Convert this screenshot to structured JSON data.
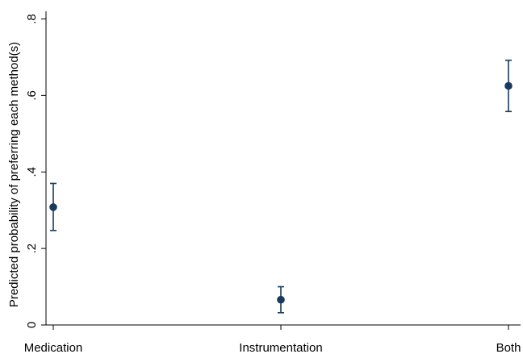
{
  "chart_data": {
    "type": "scatter",
    "title": "",
    "xlabel": "",
    "ylabel": "Predicted probability of preferring each method(s)",
    "categories": [
      "Medication",
      "Instrumentation",
      "Both"
    ],
    "y_ticks": [
      0,
      0.2,
      0.4,
      0.6,
      0.8
    ],
    "y_tick_labels": [
      "0",
      ".2",
      ".4",
      ".6",
      ".8"
    ],
    "ylim": [
      0,
      0.82
    ],
    "grid": false,
    "legend": "none",
    "marker_color": "#1a3a5c",
    "points": [
      {
        "category": "Medication",
        "estimate": 0.308,
        "ci_low": 0.247,
        "ci_high": 0.37
      },
      {
        "category": "Instrumentation",
        "estimate": 0.066,
        "ci_low": 0.032,
        "ci_high": 0.1
      },
      {
        "category": "Both",
        "estimate": 0.625,
        "ci_low": 0.558,
        "ci_high": 0.692
      }
    ]
  }
}
